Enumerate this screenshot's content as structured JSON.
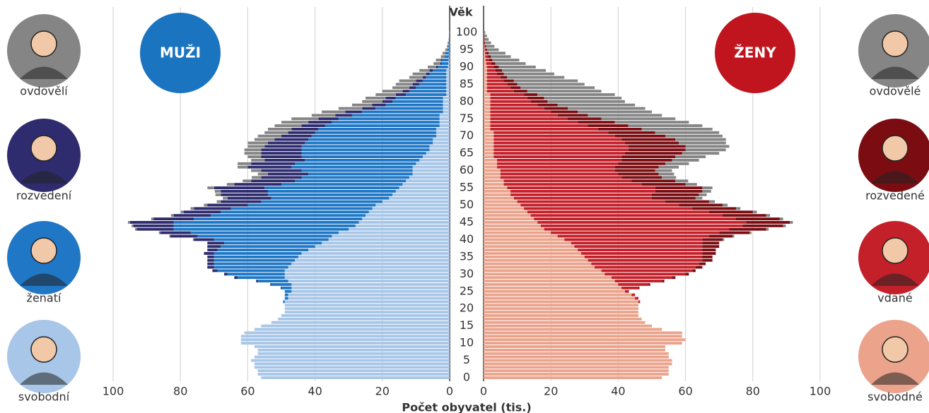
{
  "chart_data": {
    "type": "pyramid",
    "age_label": "Věk",
    "xlabel": "Počet obyvatel (tis.)",
    "ylim": [
      0,
      100
    ],
    "yticks": [
      0,
      5,
      10,
      15,
      20,
      25,
      30,
      35,
      40,
      45,
      50,
      55,
      60,
      65,
      70,
      75,
      80,
      85,
      90,
      95,
      100
    ],
    "ages": [
      0,
      1,
      2,
      3,
      4,
      5,
      6,
      7,
      8,
      9,
      10,
      11,
      12,
      13,
      14,
      15,
      16,
      17,
      18,
      19,
      20,
      21,
      22,
      23,
      24,
      25,
      26,
      27,
      28,
      29,
      30,
      31,
      32,
      33,
      34,
      35,
      36,
      37,
      38,
      39,
      40,
      41,
      42,
      43,
      44,
      45,
      46,
      47,
      48,
      49,
      50,
      51,
      52,
      53,
      54,
      55,
      56,
      57,
      58,
      59,
      60,
      61,
      62,
      63,
      64,
      65,
      66,
      67,
      68,
      69,
      70,
      71,
      72,
      73,
      74,
      75,
      76,
      77,
      78,
      79,
      80,
      81,
      82,
      83,
      84,
      85,
      86,
      87,
      88,
      89,
      90,
      91,
      92,
      93,
      94,
      95,
      96,
      97,
      98,
      99,
      100
    ],
    "panels": [
      {
        "name": "MUŽI",
        "color": "#1a74c0",
        "side": "left",
        "xlim": [
          0,
          100
        ],
        "xticks": [
          0,
          20,
          40,
          60,
          80,
          100
        ],
        "series": [
          {
            "name": "svobodní",
            "color": "#a7c6e8",
            "values": [
              56,
              57,
              57,
              58,
              58,
              59,
              58,
              57,
              57,
              58,
              62,
              62,
              62,
              61,
              58,
              56,
              53,
              51,
              50,
              49,
              49,
              49,
              49,
              48,
              48,
              47,
              47,
              47,
              48,
              49,
              49,
              49,
              48,
              47,
              46,
              45,
              44,
              42,
              40,
              38,
              36,
              35,
              33,
              30,
              28,
              27,
              26,
              25,
              24,
              23,
              22,
              20,
              18,
              17,
              16,
              15,
              14,
              13,
              12,
              11,
              11,
              11,
              10,
              9,
              8,
              7,
              6,
              6,
              5,
              5,
              4,
              4,
              4,
              3,
              3,
              3,
              3,
              2,
              2,
              2,
              2,
              2,
              1,
              1,
              1,
              1,
              1,
              1,
              1,
              1,
              0.5,
              0.4,
              0.3,
              0.2,
              0.2,
              0.1,
              0.1,
              0.1,
              0,
              0,
              0
            ]
          },
          {
            "name": "ženatí",
            "color": "#1f77c6",
            "values": [
              0,
              0,
              0,
              0,
              0,
              0,
              0,
              0,
              0,
              0,
              0,
              0,
              0,
              0,
              0,
              0,
              0,
              0,
              0,
              0,
              0,
              0,
              0.5,
              1,
              1,
              2,
              3,
              6,
              9,
              14,
              17,
              20,
              22,
              23,
              24,
              25,
              26,
              27,
              28,
              29,
              34,
              40,
              44,
              52,
              54,
              55,
              50,
              46,
              44,
              42,
              38,
              36,
              35,
              37,
              38,
              40,
              36,
              33,
              32,
              31,
              33,
              36,
              36,
              34,
              36,
              37,
              38,
              38,
              38,
              37,
              37,
              36,
              35,
              34,
              32,
              30,
              26,
              24,
              20,
              17,
              15,
              14,
              12,
              11,
              9,
              8,
              7,
              6,
              5,
              4,
              3,
              2,
              2,
              1,
              1,
              0.5,
              0.3,
              0.2,
              0.1,
              0.1,
              0
            ]
          },
          {
            "name": "rozvedení",
            "color": "#2e2c6e",
            "values": [
              0,
              0,
              0,
              0,
              0,
              0,
              0,
              0,
              0,
              0,
              0,
              0,
              0,
              0,
              0,
              0,
              0,
              0,
              0,
              0,
              0,
              0,
              0,
              0,
              0,
              0,
              0.2,
              0.3,
              0.5,
              1,
              1,
              1.5,
              2,
              2,
              2,
              2,
              3,
              3,
              4,
              5,
              6,
              8,
              9,
              11,
              12,
              13,
              12,
              11,
              11,
              11,
              12,
              12,
              13,
              14,
              14,
              15,
              14,
              13,
              12,
              12,
              12,
              13,
              13,
              12,
              12,
              12,
              12,
              11,
              11,
              10,
              9,
              8,
              8,
              7,
              7,
              6,
              5,
              5,
              4,
              4,
              3,
              3,
              3,
              2,
              2,
              2,
              2,
              1,
              1,
              1,
              0.5,
              0.4,
              0.3,
              0.2,
              0.1,
              0.1,
              0,
              0,
              0,
              0,
              0
            ]
          },
          {
            "name": "ovdovělí",
            "color": "#858585",
            "values": [
              0,
              0,
              0,
              0,
              0,
              0,
              0,
              0,
              0,
              0,
              0,
              0,
              0,
              0,
              0,
              0,
              0,
              0,
              0,
              0,
              0,
              0,
              0,
              0,
              0,
              0,
              0,
              0,
              0,
              0,
              0,
              0,
              0,
              0,
              0,
              0,
              0,
              0,
              0,
              0,
              0.3,
              0.3,
              0.4,
              0.5,
              0.5,
              0.6,
              0.7,
              0.8,
              0.9,
              1,
              1,
              1.2,
              1.4,
              1.6,
              1.8,
              2,
              2.2,
              2.5,
              2.8,
              3,
              3,
              3,
              4,
              4,
              4,
              5,
              5,
              5,
              6,
              6,
              7,
              7,
              7,
              8,
              8,
              8,
              7,
              7,
              7,
              6,
              6,
              6,
              6,
              6,
              5,
              5,
              5,
              4,
              4,
              3,
              2.5,
              2,
              1.5,
              1.2,
              0.8,
              0.6,
              0.4,
              0.3,
              0.2,
              0.1,
              0.1
            ]
          }
        ]
      },
      {
        "name": "ŽENY",
        "color": "#c0151f",
        "side": "right",
        "xlim": [
          0,
          100
        ],
        "xticks": [
          0,
          20,
          40,
          60,
          80,
          100
        ],
        "series": [
          {
            "name": "svobodné",
            "color": "#eba38c",
            "values": [
              53,
              55,
              55,
              55,
              56,
              56,
              55,
              55,
              54,
              54,
              59,
              60,
              59,
              59,
              53,
              50,
              48,
              47,
              46,
              46,
              46,
              46,
              46,
              45,
              44,
              42,
              41,
              40,
              39,
              38,
              36,
              35,
              33,
              32,
              31,
              30,
              29,
              28,
              27,
              26,
              24,
              22,
              20,
              18,
              17,
              16,
              15,
              14,
              13,
              12,
              11,
              10,
              9,
              8,
              8,
              7,
              6,
              6,
              5,
              5,
              5,
              4,
              4,
              4,
              3,
              3,
              3,
              3,
              3,
              3,
              3,
              3,
              2,
              2,
              2,
              2,
              2,
              2,
              2,
              2,
              2,
              2,
              2,
              1,
              1,
              1,
              1,
              1,
              1,
              1,
              1,
              0.8,
              0.6,
              0.5,
              0.4,
              0.3,
              0.2,
              0.1,
              0.1,
              0.1,
              0
            ]
          },
          {
            "name": "vdané",
            "color": "#c4202a",
            "values": [
              0,
              0,
              0,
              0,
              0,
              0,
              0,
              0,
              0,
              0,
              0,
              0,
              0,
              0,
              0,
              0,
              0,
              0,
              0,
              0,
              0,
              0,
              0.5,
              1,
              1,
              1,
              5,
              9,
              14,
              18,
              24,
              27,
              30,
              32,
              34,
              35,
              36,
              37,
              38,
              39,
              41,
              45,
              50,
              55,
              60,
              62,
              60,
              57,
              54,
              50,
              47,
              44,
              41,
              42,
              43,
              44,
              41,
              38,
              36,
              35,
              34,
              35,
              36,
              37,
              38,
              39,
              40,
              40,
              39,
              38,
              36,
              34,
              32,
              29,
              26,
              23,
              20,
              18,
              16,
              14,
              12,
              11,
              10,
              8,
              7,
              6,
              5,
              4,
              3,
              2.5,
              2,
              1.5,
              1,
              0.8,
              0.5,
              0.3,
              0.2,
              0.1,
              0.1,
              0,
              0
            ]
          },
          {
            "name": "rozvedené",
            "color": "#7b0d12",
            "values": [
              0,
              0,
              0,
              0,
              0,
              0,
              0,
              0,
              0,
              0,
              0,
              0,
              0,
              0,
              0,
              0,
              0,
              0,
              0,
              0,
              0,
              0,
              0,
              0,
              0,
              0.2,
              0.3,
              0.5,
              0.7,
              1,
              1,
              1,
              2,
              2,
              3,
              3,
              4,
              4,
              5,
              5,
              6,
              7,
              9,
              11,
              12,
              13,
              13,
              13,
              13,
              13,
              13,
              13,
              13,
              14,
              14,
              14,
              13,
              13,
              12,
              12,
              12,
              13,
              14,
              15,
              16,
              17,
              17,
              17,
              16,
              16,
              15,
              14,
              13,
              12,
              11,
              10,
              9,
              8,
              7,
              6,
              5,
              5,
              4,
              4,
              3,
              3,
              3,
              2,
              2,
              2,
              1.5,
              1.2,
              1,
              0.8,
              0.6,
              0.4,
              0.3,
              0.2,
              0.1,
              0.1,
              0
            ]
          },
          {
            "name": "ovdovělé",
            "color": "#858585",
            "values": [
              0,
              0,
              0,
              0,
              0,
              0,
              0,
              0,
              0,
              0,
              0,
              0,
              0,
              0,
              0,
              0,
              0,
              0,
              0,
              0,
              0,
              0,
              0,
              0,
              0,
              0,
              0,
              0,
              0,
              0,
              0,
              0,
              0,
              0,
              0,
              0,
              0,
              0,
              0,
              0,
              0.5,
              0.5,
              0.6,
              0.7,
              0.8,
              0.9,
              1,
              1.1,
              1.2,
              1.3,
              1.5,
              1.7,
              2,
              2.3,
              2.6,
              3,
              3.4,
              3.8,
              4.2,
              4.6,
              5,
              6,
              7,
              8,
              9,
              11,
              12,
              13,
              14,
              15,
              17,
              19,
              21,
              22,
              22,
              22,
              22,
              22,
              23,
              23,
              23,
              23,
              23,
              22,
              22,
              20,
              19,
              17,
              15,
              13,
              11,
              9,
              8,
              6,
              5,
              3.5,
              2.5,
              1.8,
              1.2,
              0.8,
              0.5
            ]
          }
        ]
      }
    ]
  }
}
